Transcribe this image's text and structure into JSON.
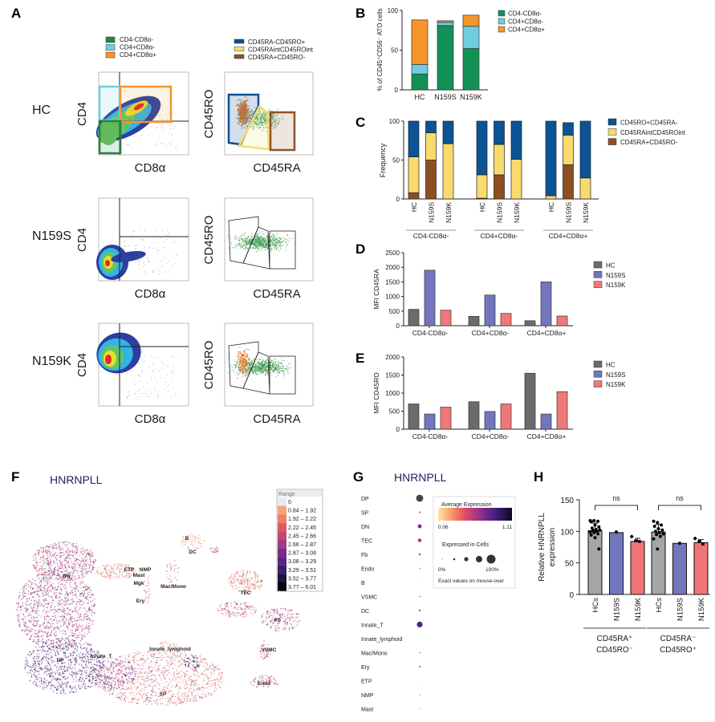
{
  "panel_labels": {
    "A": "A",
    "B": "B",
    "C": "C",
    "D": "D",
    "E": "E",
    "F": "F",
    "G": "G",
    "H": "H"
  },
  "panel_a": {
    "legend_left": [
      {
        "label": "CD4-CD8α-",
        "color": "#1f8a44"
      },
      {
        "label": "CD4+CD8α-",
        "color": "#6fcde0"
      },
      {
        "label": "CD4+CD8α+",
        "color": "#f4962a"
      }
    ],
    "legend_right": [
      {
        "label": "CD45RA-CD45RO+",
        "color": "#0c4f93"
      },
      {
        "label": "CD45RAintCD45ROint",
        "color": "#f8dc6a"
      },
      {
        "label": "CD45RA+CD45RO-",
        "color": "#8e5226"
      }
    ],
    "rows": [
      {
        "label": "HC"
      },
      {
        "label": "N159S"
      },
      {
        "label": "N159K"
      }
    ],
    "axes": {
      "cd4": "CD4",
      "cd8": "CD8α",
      "cd45ro": "CD45RO",
      "cd45ra": "CD45RA"
    }
  },
  "chart_data": [
    {
      "id": "B",
      "type": "bar",
      "stacked": true,
      "ylabel": "% of CD45⁺CD56⁻ ATO cells",
      "ylim": [
        0,
        100
      ],
      "yticks": [
        "0",
        "50",
        "100"
      ],
      "categories": [
        "HC",
        "N159S",
        "N159K"
      ],
      "legend_position": "right",
      "series": [
        {
          "name": "CD4-CD8α-",
          "color": "#139155",
          "values": [
            20,
            81,
            52
          ]
        },
        {
          "name": "CD4+CD8α-",
          "color": "#6fcde0",
          "values": [
            12,
            4,
            28
          ]
        },
        {
          "name": "CD4+CD8α+",
          "color": "#f6962a",
          "values": [
            56,
            2,
            14
          ]
        }
      ]
    },
    {
      "id": "C",
      "type": "bar",
      "stacked": true,
      "ylabel": "Frequency",
      "ylim": [
        0,
        100
      ],
      "yticks": [
        "0",
        "50",
        "100"
      ],
      "groups": [
        "CD4-CD8α-",
        "CD4+CD8α-",
        "CD4+CD8α+"
      ],
      "categories": [
        "HC",
        "N159S",
        "N159K"
      ],
      "legend_position": "right",
      "series": [
        {
          "name": "CD45RA+CD45RO-",
          "color": "#8c4f22",
          "values": [
            [
              8,
              50,
              0
            ],
            [
              1,
              31,
              0
            ],
            [
              0,
              44,
              0
            ]
          ]
        },
        {
          "name": "CD45RAintCD45ROint",
          "color": "#f9db6d",
          "values": [
            [
              46,
              35,
              71
            ],
            [
              30,
              39,
              51
            ],
            [
              4,
              38,
              27
            ]
          ]
        },
        {
          "name": "CD45RO+CD45RA-",
          "color": "#0b5394",
          "values": [
            [
              46,
              15,
              29
            ],
            [
              69,
              30,
              49
            ],
            [
              96,
              16,
              73
            ]
          ]
        }
      ],
      "legend_order": [
        "CD45RO+CD45RA-",
        "CD45RAintCD45ROint",
        "CD45RA+CD45RO-"
      ]
    },
    {
      "id": "D",
      "type": "bar",
      "ylabel": "MFI CD45RA",
      "ylim": [
        0,
        2500
      ],
      "yticks": [
        "0",
        "500",
        "1000",
        "1500",
        "2000",
        "2500"
      ],
      "categories": [
        "CD4-CD8α-",
        "CD4+CD8α-",
        "CD4+CD8α+"
      ],
      "legend_position": "right",
      "series": [
        {
          "name": "HC",
          "color": "#6b6b6b",
          "values": [
            560,
            320,
            170
          ]
        },
        {
          "name": "N159S",
          "color": "#7276bd",
          "values": [
            1900,
            1050,
            1500
          ]
        },
        {
          "name": "N159K",
          "color": "#f07878",
          "values": [
            530,
            420,
            330
          ]
        }
      ]
    },
    {
      "id": "E",
      "type": "bar",
      "ylabel": "MFI CD45RO",
      "ylim": [
        0,
        2000
      ],
      "yticks": [
        "0",
        "500",
        "1000",
        "1500",
        "2000"
      ],
      "categories": [
        "CD4-CD8α-",
        "CD4+CD8α-",
        "CD4+CD8α+"
      ],
      "legend_position": "right",
      "series": [
        {
          "name": "HC",
          "color": "#6b6b6b",
          "values": [
            700,
            760,
            1550
          ]
        },
        {
          "name": "N159S",
          "color": "#7276bd",
          "values": [
            420,
            490,
            420
          ]
        },
        {
          "name": "N159K",
          "color": "#f07878",
          "values": [
            610,
            700,
            1040
          ]
        }
      ]
    },
    {
      "id": "H",
      "type": "bar",
      "ylabel": "Relative HNRNPLL",
      "ylabel2": "expression",
      "ylim": [
        0,
        150
      ],
      "yticks": [
        "0",
        "50",
        "100",
        "150"
      ],
      "groups": [
        {
          "line1": "CD45RA⁺",
          "line2": "CD45RO⁻"
        },
        {
          "line1": "CD45RA⁻",
          "line2": "CD45RO⁺"
        }
      ],
      "categories": [
        "HCs",
        "N159S",
        "N159K"
      ],
      "colors": [
        "#a6a6a6",
        "#7276bd",
        "#f07575"
      ],
      "values": [
        [
          101,
          98,
          84
        ],
        [
          99,
          81,
          82
        ]
      ],
      "points": [
        [
          [
            117,
            117,
            116,
            115,
            110,
            107,
            105,
            103,
            102,
            101,
            100,
            99,
            98,
            96,
            94,
            90,
            72
          ],
          [
            99
          ],
          [
            92,
            85,
            84
          ]
        ],
        [
          [
            116,
            114,
            110,
            108,
            104,
            102,
            100,
            98,
            96,
            95,
            92,
            88,
            72
          ],
          [
            81
          ],
          [
            89,
            84,
            80
          ]
        ]
      ],
      "significance": [
        "ns",
        "ns"
      ]
    }
  ],
  "panel_f": {
    "title": "HNRNPLL",
    "legend_title": "Range",
    "legend": [
      {
        "label": "0",
        "color": "#e2edf7"
      },
      {
        "label": "0.84 – 1.92",
        "color": "#f4a674"
      },
      {
        "label": "1.92 – 2.22",
        "color": "#ec8063"
      },
      {
        "label": "2.22 – 2.45",
        "color": "#dd5a62"
      },
      {
        "label": "2.45 – 2.66",
        "color": "#c34870"
      },
      {
        "label": "2.66 – 2.87",
        "color": "#a23a80"
      },
      {
        "label": "2.87 – 3.08",
        "color": "#7e2a8a"
      },
      {
        "label": "3.08 – 3.29",
        "color": "#5b2484"
      },
      {
        "label": "3.29 – 3.51",
        "color": "#3a1d6b"
      },
      {
        "label": "3.52 – 3.77",
        "color": "#1d1240"
      },
      {
        "label": "3.77 – 6.01",
        "color": "#050510"
      }
    ],
    "clusters": [
      "DN",
      "ETP",
      "NMP",
      "Mast",
      "Mgk",
      "Ery",
      "Mac/Mono",
      "B",
      "DC",
      "TEC",
      "Fb",
      "VSMC",
      "Endo",
      "Innate_lymphoid",
      "Innate_T",
      "DP",
      "SP"
    ]
  },
  "panel_g": {
    "title": "HNRNPLL",
    "legend_avg_title": "Average Expression",
    "legend_min": "0.06",
    "legend_max": "1.11",
    "legend_pct_title": "Expressed in Cells",
    "legend_pct_min": "0%",
    "legend_pct_max": "100%",
    "legend_note": "Exact values on mouse-over",
    "rows": [
      {
        "label": "DP",
        "avg": 1.11,
        "pct": 0.55
      },
      {
        "label": "SP",
        "avg": 0.55,
        "pct": 0.12
      },
      {
        "label": "DN",
        "avg": 0.75,
        "pct": 0.3
      },
      {
        "label": "TEC",
        "avg": 0.6,
        "pct": 0.28
      },
      {
        "label": "Fb",
        "avg": 0.55,
        "pct": 0.15
      },
      {
        "label": "Endo",
        "avg": 0.4,
        "pct": 0.05
      },
      {
        "label": "B",
        "avg": 0.06,
        "pct": 0.04
      },
      {
        "label": "VSMC",
        "avg": 0.45,
        "pct": 0.07
      },
      {
        "label": "DC",
        "avg": 0.55,
        "pct": 0.14
      },
      {
        "label": "Innate_T",
        "avg": 0.8,
        "pct": 0.45
      },
      {
        "label": "Innate_lymphoid",
        "avg": 0.1,
        "pct": 0.03
      },
      {
        "label": "Mac/Mono",
        "avg": 0.45,
        "pct": 0.07
      },
      {
        "label": "Ery",
        "avg": 0.55,
        "pct": 0.12
      },
      {
        "label": "ETP",
        "avg": 0.08,
        "pct": 0.03
      },
      {
        "label": "NMP",
        "avg": 0.3,
        "pct": 0.04
      },
      {
        "label": "Mast",
        "avg": 0.25,
        "pct": 0.03
      }
    ]
  }
}
